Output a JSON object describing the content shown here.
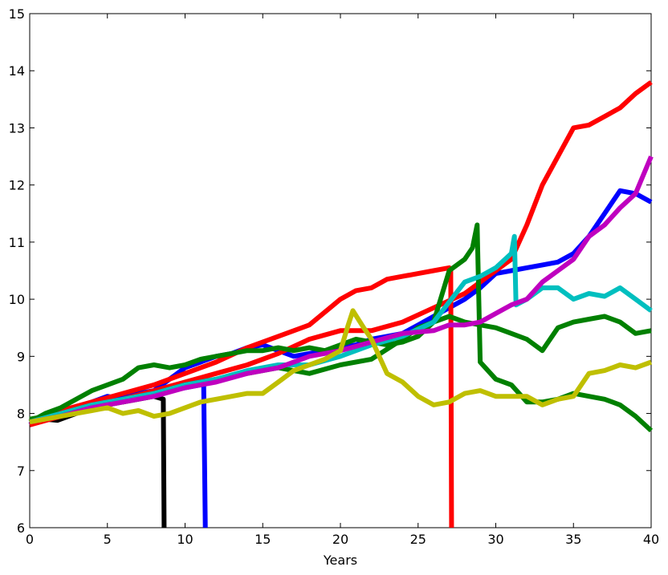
{
  "chart_data": {
    "type": "line",
    "title": "",
    "xlabel": "Years",
    "ylabel": "",
    "xlim": [
      0,
      40
    ],
    "ylim": [
      6,
      15
    ],
    "xticks": [
      0,
      5,
      10,
      15,
      20,
      25,
      30,
      35,
      40
    ],
    "yticks": [
      6,
      7,
      8,
      9,
      10,
      11,
      12,
      13,
      14,
      15
    ],
    "grid": false,
    "legend": "none",
    "series": [
      {
        "color": "#000000",
        "points": [
          [
            0,
            7.85
          ],
          [
            1,
            7.9
          ],
          [
            1.8,
            7.88
          ],
          [
            2.5,
            7.95
          ],
          [
            3.5,
            8.05
          ],
          [
            4.5,
            8.15
          ],
          [
            5.2,
            8.25
          ],
          [
            6,
            8.2
          ],
          [
            7,
            8.25
          ],
          [
            8,
            8.3
          ],
          [
            8.6,
            8.25
          ],
          [
            8.65,
            6.0
          ]
        ]
      },
      {
        "color": "#0000ff",
        "points": [
          [
            0,
            7.8
          ],
          [
            1,
            7.95
          ],
          [
            2,
            8.05
          ],
          [
            3,
            8.1
          ],
          [
            4,
            8.2
          ],
          [
            5,
            8.3
          ],
          [
            6,
            8.25
          ],
          [
            7,
            8.3
          ],
          [
            8,
            8.35
          ],
          [
            9,
            8.4
          ],
          [
            10,
            8.45
          ],
          [
            11,
            8.5
          ],
          [
            11.2,
            8.5
          ],
          [
            11.3,
            6.0
          ]
        ]
      },
      {
        "color": "#0000ff",
        "points": [
          [
            0,
            7.8
          ],
          [
            2,
            8.0
          ],
          [
            4,
            8.15
          ],
          [
            6,
            8.3
          ],
          [
            8,
            8.4
          ],
          [
            9,
            8.6
          ],
          [
            10,
            8.8
          ],
          [
            11,
            8.9
          ],
          [
            12,
            9.0
          ],
          [
            13,
            9.05
          ],
          [
            14,
            9.15
          ],
          [
            15,
            9.2
          ],
          [
            16,
            9.1
          ],
          [
            17,
            9.0
          ],
          [
            18,
            9.05
          ],
          [
            19,
            9.1
          ],
          [
            20,
            9.15
          ],
          [
            21,
            9.2
          ],
          [
            22,
            9.3
          ],
          [
            23,
            9.35
          ],
          [
            24,
            9.4
          ],
          [
            25,
            9.55
          ],
          [
            26,
            9.7
          ],
          [
            27,
            9.85
          ],
          [
            28,
            10.0
          ],
          [
            29,
            10.2
          ],
          [
            30,
            10.45
          ],
          [
            31,
            10.5
          ],
          [
            32,
            10.55
          ],
          [
            33,
            10.6
          ],
          [
            34,
            10.65
          ],
          [
            35,
            10.8
          ],
          [
            36,
            11.1
          ],
          [
            37,
            11.5
          ],
          [
            38,
            11.9
          ],
          [
            39,
            11.85
          ],
          [
            40,
            11.7
          ]
        ]
      },
      {
        "color": "#ff0000",
        "points": [
          [
            0,
            7.85
          ],
          [
            2,
            8.05
          ],
          [
            4,
            8.2
          ],
          [
            6,
            8.35
          ],
          [
            8,
            8.5
          ],
          [
            10,
            8.7
          ],
          [
            12,
            8.9
          ],
          [
            14,
            9.15
          ],
          [
            16,
            9.35
          ],
          [
            18,
            9.55
          ],
          [
            20,
            10.0
          ],
          [
            21,
            10.15
          ],
          [
            22,
            10.2
          ],
          [
            23,
            10.35
          ],
          [
            24,
            10.4
          ],
          [
            25,
            10.45
          ],
          [
            26,
            10.5
          ],
          [
            27,
            10.55
          ],
          [
            27.1,
            10.5
          ],
          [
            27.15,
            6.0
          ]
        ]
      },
      {
        "color": "#ff0000",
        "points": [
          [
            0,
            7.8
          ],
          [
            2,
            7.95
          ],
          [
            4,
            8.1
          ],
          [
            6,
            8.25
          ],
          [
            8,
            8.4
          ],
          [
            10,
            8.55
          ],
          [
            12,
            8.7
          ],
          [
            14,
            8.85
          ],
          [
            16,
            9.05
          ],
          [
            18,
            9.3
          ],
          [
            20,
            9.45
          ],
          [
            22,
            9.45
          ],
          [
            24,
            9.6
          ],
          [
            26,
            9.85
          ],
          [
            28,
            10.1
          ],
          [
            30,
            10.5
          ],
          [
            31,
            10.7
          ],
          [
            32,
            11.3
          ],
          [
            33,
            12.0
          ],
          [
            34,
            12.5
          ],
          [
            35,
            13.0
          ],
          [
            36,
            13.05
          ],
          [
            37,
            13.2
          ],
          [
            38,
            13.35
          ],
          [
            39,
            13.6
          ],
          [
            40,
            13.8
          ]
        ]
      },
      {
        "color": "#008000",
        "points": [
          [
            0,
            7.85
          ],
          [
            1,
            8.0
          ],
          [
            2,
            8.1
          ],
          [
            3,
            8.25
          ],
          [
            4,
            8.4
          ],
          [
            5,
            8.5
          ],
          [
            6,
            8.6
          ],
          [
            7,
            8.8
          ],
          [
            8,
            8.85
          ],
          [
            9,
            8.8
          ],
          [
            10,
            8.85
          ],
          [
            11,
            8.95
          ],
          [
            12,
            9.0
          ],
          [
            13,
            9.05
          ],
          [
            14,
            9.1
          ],
          [
            15,
            9.1
          ],
          [
            16,
            9.15
          ],
          [
            17,
            9.1
          ],
          [
            18,
            9.15
          ],
          [
            19,
            9.1
          ],
          [
            20,
            9.2
          ],
          [
            21,
            9.3
          ],
          [
            22,
            9.25
          ],
          [
            23,
            9.2
          ],
          [
            24,
            9.25
          ],
          [
            25,
            9.35
          ],
          [
            26,
            9.6
          ],
          [
            27,
            10.5
          ],
          [
            28,
            10.7
          ],
          [
            28.5,
            10.9
          ],
          [
            28.8,
            11.3
          ],
          [
            29,
            8.9
          ],
          [
            30,
            8.6
          ],
          [
            31,
            8.5
          ],
          [
            32,
            8.2
          ],
          [
            33,
            8.2
          ],
          [
            34,
            8.25
          ],
          [
            35,
            8.35
          ],
          [
            36,
            8.3
          ],
          [
            37,
            8.25
          ],
          [
            38,
            8.15
          ],
          [
            39,
            7.95
          ],
          [
            40,
            7.7
          ]
        ]
      },
      {
        "color": "#008000",
        "points": [
          [
            0,
            7.9
          ],
          [
            2,
            8.0
          ],
          [
            4,
            8.1
          ],
          [
            6,
            8.2
          ],
          [
            8,
            8.35
          ],
          [
            10,
            8.5
          ],
          [
            12,
            8.6
          ],
          [
            14,
            8.7
          ],
          [
            16,
            8.8
          ],
          [
            18,
            8.7
          ],
          [
            20,
            8.85
          ],
          [
            22,
            8.95
          ],
          [
            24,
            9.3
          ],
          [
            25,
            9.5
          ],
          [
            26,
            9.6
          ],
          [
            27,
            9.7
          ],
          [
            28,
            9.6
          ],
          [
            29,
            9.55
          ],
          [
            30,
            9.5
          ],
          [
            31,
            9.4
          ],
          [
            32,
            9.3
          ],
          [
            33,
            9.1
          ],
          [
            34,
            9.5
          ],
          [
            35,
            9.6
          ],
          [
            36,
            9.65
          ],
          [
            37,
            9.7
          ],
          [
            38,
            9.6
          ],
          [
            39,
            9.4
          ],
          [
            40,
            9.45
          ]
        ]
      },
      {
        "color": "#00bfbf",
        "points": [
          [
            0,
            7.85
          ],
          [
            2,
            8.0
          ],
          [
            4,
            8.15
          ],
          [
            6,
            8.25
          ],
          [
            8,
            8.35
          ],
          [
            10,
            8.5
          ],
          [
            12,
            8.6
          ],
          [
            14,
            8.75
          ],
          [
            16,
            8.85
          ],
          [
            18,
            8.85
          ],
          [
            20,
            9.0
          ],
          [
            22,
            9.2
          ],
          [
            24,
            9.35
          ],
          [
            26,
            9.6
          ],
          [
            28,
            10.3
          ],
          [
            29,
            10.4
          ],
          [
            30,
            10.55
          ],
          [
            31,
            10.8
          ],
          [
            31.2,
            11.1
          ],
          [
            31.3,
            9.9
          ],
          [
            32,
            10.0
          ],
          [
            33,
            10.2
          ],
          [
            34,
            10.2
          ],
          [
            35,
            10.0
          ],
          [
            36,
            10.1
          ],
          [
            37,
            10.05
          ],
          [
            38,
            10.2
          ],
          [
            39,
            10.0
          ],
          [
            40,
            9.8
          ]
        ]
      },
      {
        "color": "#bf00bf",
        "points": [
          [
            0,
            7.85
          ],
          [
            2,
            7.95
          ],
          [
            4,
            8.1
          ],
          [
            6,
            8.2
          ],
          [
            8,
            8.3
          ],
          [
            10,
            8.45
          ],
          [
            12,
            8.55
          ],
          [
            14,
            8.7
          ],
          [
            16,
            8.8
          ],
          [
            18,
            9.0
          ],
          [
            20,
            9.1
          ],
          [
            22,
            9.25
          ],
          [
            24,
            9.4
          ],
          [
            26,
            9.45
          ],
          [
            27,
            9.55
          ],
          [
            28,
            9.55
          ],
          [
            29,
            9.6
          ],
          [
            30,
            9.75
          ],
          [
            31,
            9.9
          ],
          [
            32,
            10.0
          ],
          [
            33,
            10.3
          ],
          [
            34,
            10.5
          ],
          [
            35,
            10.7
          ],
          [
            36,
            11.1
          ],
          [
            37,
            11.3
          ],
          [
            38,
            11.6
          ],
          [
            39,
            11.85
          ],
          [
            40,
            12.5
          ]
        ]
      },
      {
        "color": "#bfbf00",
        "points": [
          [
            0,
            7.85
          ],
          [
            2,
            7.95
          ],
          [
            4,
            8.05
          ],
          [
            5,
            8.1
          ],
          [
            6,
            8.0
          ],
          [
            7,
            8.05
          ],
          [
            8,
            7.95
          ],
          [
            9,
            8.0
          ],
          [
            10,
            8.1
          ],
          [
            11,
            8.2
          ],
          [
            12,
            8.25
          ],
          [
            13,
            8.3
          ],
          [
            14,
            8.35
          ],
          [
            15,
            8.35
          ],
          [
            16,
            8.55
          ],
          [
            17,
            8.75
          ],
          [
            18,
            8.85
          ],
          [
            19,
            8.95
          ],
          [
            20,
            9.1
          ],
          [
            20.5,
            9.55
          ],
          [
            20.8,
            9.8
          ],
          [
            21.5,
            9.5
          ],
          [
            22,
            9.3
          ],
          [
            23,
            8.7
          ],
          [
            24,
            8.55
          ],
          [
            25,
            8.3
          ],
          [
            26,
            8.15
          ],
          [
            27,
            8.2
          ],
          [
            28,
            8.35
          ],
          [
            29,
            8.4
          ],
          [
            30,
            8.3
          ],
          [
            31,
            8.3
          ],
          [
            32,
            8.3
          ],
          [
            33,
            8.15
          ],
          [
            34,
            8.25
          ],
          [
            35,
            8.3
          ],
          [
            36,
            8.7
          ],
          [
            37,
            8.75
          ],
          [
            38,
            8.85
          ],
          [
            39,
            8.8
          ],
          [
            40,
            8.9
          ]
        ]
      }
    ]
  }
}
